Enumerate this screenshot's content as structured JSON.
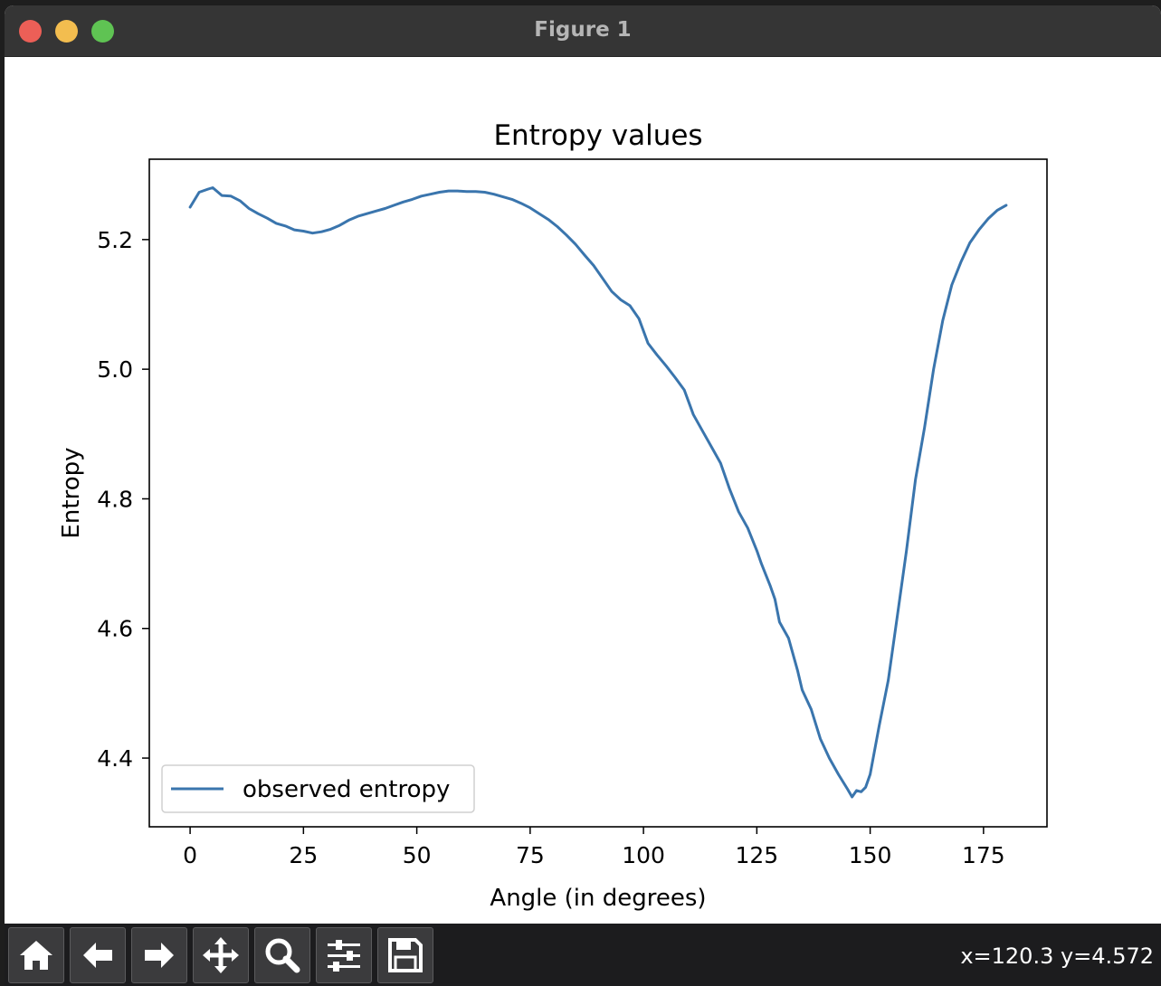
{
  "window": {
    "title": "Figure 1"
  },
  "toolbar": {
    "buttons": [
      {
        "name": "home",
        "icon": "home-icon"
      },
      {
        "name": "back",
        "icon": "arrow-left-icon"
      },
      {
        "name": "forward",
        "icon": "arrow-right-icon"
      },
      {
        "name": "pan",
        "icon": "move-icon"
      },
      {
        "name": "zoom",
        "icon": "magnifier-icon"
      },
      {
        "name": "configure",
        "icon": "sliders-icon"
      },
      {
        "name": "save",
        "icon": "floppy-disk-icon"
      }
    ],
    "coords": "x=120.3 y=4.572"
  },
  "chart_data": {
    "type": "line",
    "title": "Entropy values",
    "xlabel": "Angle (in degrees)",
    "ylabel": "Entropy",
    "xlim": [
      -9,
      189
    ],
    "ylim": [
      4.294,
      5.324
    ],
    "xticks": [
      0,
      25,
      50,
      75,
      100,
      125,
      150,
      175
    ],
    "yticks": [
      4.4,
      4.6,
      4.8,
      5.0,
      5.2
    ],
    "ytick_labels": [
      "4.4",
      "4.6",
      "4.8",
      "5.0",
      "5.2"
    ],
    "legend": {
      "placement": "lower-left",
      "entries": [
        "observed entropy"
      ]
    },
    "grid": false,
    "color": "#3a75ad",
    "series": [
      {
        "name": "observed entropy",
        "x": [
          0,
          2,
          4,
          5,
          7,
          9,
          11,
          13,
          15,
          17,
          19,
          21,
          23,
          25,
          27,
          29,
          31,
          33,
          35,
          37,
          39,
          41,
          43,
          45,
          47,
          49,
          51,
          53,
          55,
          57,
          59,
          61,
          63,
          65,
          67,
          69,
          71,
          73,
          75,
          77,
          79,
          81,
          83,
          85,
          87,
          89,
          91,
          93,
          95,
          97,
          99,
          101,
          103,
          105,
          107,
          109,
          111,
          113,
          115,
          117,
          119,
          121,
          123,
          125,
          126,
          128,
          129,
          130,
          132,
          134,
          135,
          137,
          139,
          141,
          143,
          145,
          146,
          147,
          148,
          149,
          150,
          152,
          154,
          156,
          158,
          160,
          162,
          164,
          166,
          168,
          170,
          172,
          174,
          176,
          178,
          180
        ],
        "y": [
          5.25,
          5.273,
          5.278,
          5.28,
          5.268,
          5.267,
          5.26,
          5.248,
          5.24,
          5.233,
          5.225,
          5.221,
          5.215,
          5.213,
          5.21,
          5.212,
          5.216,
          5.222,
          5.23,
          5.236,
          5.24,
          5.244,
          5.248,
          5.253,
          5.258,
          5.262,
          5.267,
          5.27,
          5.273,
          5.275,
          5.275,
          5.274,
          5.274,
          5.273,
          5.27,
          5.266,
          5.262,
          5.256,
          5.249,
          5.24,
          5.231,
          5.22,
          5.207,
          5.193,
          5.176,
          5.16,
          5.14,
          5.12,
          5.107,
          5.098,
          5.078,
          5.04,
          5.022,
          5.005,
          4.987,
          4.968,
          4.93,
          4.905,
          4.88,
          4.855,
          4.815,
          4.78,
          4.755,
          4.72,
          4.7,
          4.665,
          4.645,
          4.61,
          4.585,
          4.535,
          4.505,
          4.475,
          4.43,
          4.4,
          4.375,
          4.352,
          4.34,
          4.35,
          4.348,
          4.355,
          4.375,
          4.45,
          4.52,
          4.62,
          4.72,
          4.83,
          4.91,
          5.0,
          5.075,
          5.13,
          5.165,
          5.195,
          5.215,
          5.232,
          5.245,
          5.253
        ]
      }
    ]
  }
}
